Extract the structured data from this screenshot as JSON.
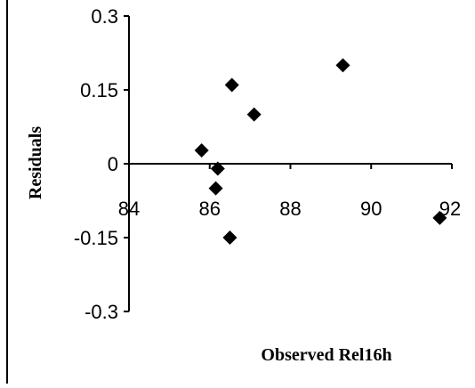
{
  "chart_data": {
    "type": "scatter",
    "xlabel": "Observed Rel16h",
    "ylabel": "Residuals",
    "xlim": [
      84,
      92
    ],
    "ylim": [
      -0.3,
      0.3
    ],
    "x_ticks": [
      "84",
      "86",
      "88",
      "90",
      "92"
    ],
    "y_ticks": [
      "0.3",
      "0.15",
      "0",
      "-0.15",
      "-0.3"
    ],
    "marker": "diamond",
    "grid": false,
    "legend": "none",
    "points": [
      {
        "x": 85.8,
        "y": 0.027
      },
      {
        "x": 86.2,
        "y": -0.01
      },
      {
        "x": 86.15,
        "y": -0.05
      },
      {
        "x": 86.5,
        "y": -0.15
      },
      {
        "x": 86.55,
        "y": 0.16
      },
      {
        "x": 87.1,
        "y": 0.1
      },
      {
        "x": 89.3,
        "y": 0.2
      },
      {
        "x": 91.7,
        "y": -0.11
      }
    ],
    "colors": {
      "marker": "#000000",
      "axis": "#000000"
    }
  }
}
